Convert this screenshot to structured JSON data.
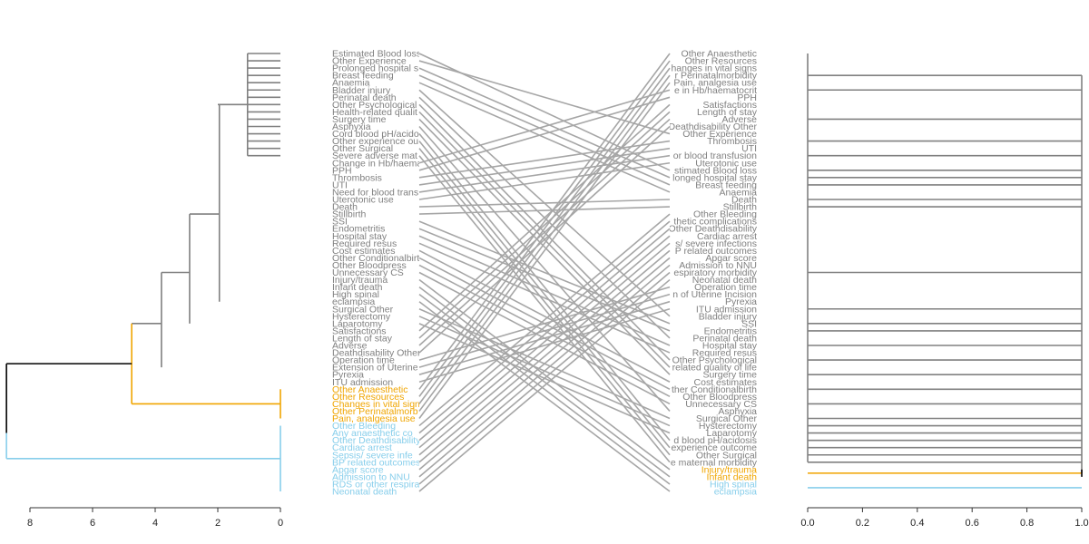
{
  "chart_data": {
    "type": "tanglegram",
    "colors": {
      "default": "#808080",
      "root": "#000000",
      "cluster_orange": "#f0a500",
      "cluster_blue": "#87ceeb",
      "connector": "#a6a6a6"
    },
    "left_labels": [
      "Estimated Blood loss",
      "Other Experience",
      "Prolonged hospital s",
      "Breast feeding",
      "Anaemia",
      "Bladder injury",
      "Perinatal death",
      "Other Psychological",
      "Health-related qualit",
      "Surgery time",
      "Asphyxia",
      "Cord blood pH/acido",
      "Other experience ou",
      "Other Surgical",
      "Severe adverse mat",
      "Change in Hb/haema",
      "PPH",
      "Thrombosis",
      "UTI",
      "Need for blood trans",
      "Uterotonic use",
      "Death",
      "Stillbirth",
      "SSI",
      "Endometritis",
      "Hospital stay",
      "Required resus",
      "Cost estimates",
      "Other Conditionalbirt",
      "Other Bloodpress",
      "Unnecessary CS",
      "Injury/trauma",
      "Infant death",
      "High spinal",
      "eclampsia",
      "Surgical Other",
      "Hysterectomy",
      "Laparotomy",
      "Satisfactions",
      "Length of stay",
      "Adverse",
      "Deathdisability Other",
      "Operation time",
      "Extension of Uterine",
      "Pyrexia",
      "ITU admission",
      "Other Anaesthetic",
      "Other Resources",
      "Changes in vital sign",
      "Other Perinatalmorb",
      "Pain, analgesia use",
      "Other Bleeding",
      "Any anaesthetic co",
      "Other Deathdisability",
      "Cardiac arrest",
      "Sepsis/ severe infe",
      "BP related outcomes",
      "Apgar score",
      "Admission to NNU",
      "RDS or other respira",
      "Neonatal death"
    ],
    "left_label_colors": {
      "orange": [
        "Other Anaesthetic",
        "Other Resources",
        "Changes in vital sign",
        "Other Perinatalmorb",
        "Pain, analgesia use"
      ],
      "blue": [
        "Other Bleeding",
        "Any anaesthetic co",
        "Other Deathdisability",
        "Cardiac arrest",
        "Sepsis/ severe infe",
        "BP related outcomes",
        "Apgar score",
        "Admission to NNU",
        "RDS or other respira",
        "Neonatal death"
      ]
    },
    "right_labels": [
      "Other Anaesthetic",
      "Other Resources",
      "hanges in vital signs",
      "r Perinatalmorbidity",
      "Pain, analgesia use",
      "e in Hb/haematocrit",
      "PPH",
      "Satisfactions",
      "Length of stay",
      "Adverse",
      "Deathdisability Other",
      "Other Experience",
      "Thrombosis",
      "UTI",
      "or blood transfusion",
      "Uterotonic use",
      "stimated Blood loss",
      "longed hospital stay",
      "Breast feeding",
      "Anaemia",
      "Death",
      "Stillbirth",
      "Other Bleeding",
      "thetic complications",
      "Other Deathdisability",
      "Cardiac arrest",
      "s/ severe infections",
      "P related outcomes",
      "Apgar score",
      "Admission to NNU",
      "espiratory morbidity",
      "Neonatal death",
      "Operation time",
      "n of Uterine Incision",
      "Pyrexia",
      "ITU admission",
      "Bladder injury",
      "SSI",
      "Endometritis",
      "Perinatal death",
      "Hospital stay",
      "Required resus",
      "Other Psychological",
      "related quality of life",
      "Surgery time",
      "Cost estimates",
      "ther Conditionalbirth",
      "Other Bloodpress",
      "Unnecessary CS",
      "Asphyxia",
      "Surgical Other",
      "Hysterectomy",
      "Laparotomy",
      "d blood pH/acidosis",
      "experience outcome",
      "Other Surgical",
      "e maternal morbidity",
      "Injury/trauma",
      "Infant death",
      "High spinal",
      "eclampsia"
    ],
    "right_label_colors": {
      "orange": [
        "Injury/trauma",
        "Infant death"
      ],
      "blue": [
        "High spinal",
        "eclampsia"
      ]
    },
    "connections": [
      [
        0,
        16
      ],
      [
        1,
        11
      ],
      [
        2,
        17
      ],
      [
        3,
        18
      ],
      [
        4,
        19
      ],
      [
        5,
        36
      ],
      [
        6,
        39
      ],
      [
        7,
        42
      ],
      [
        8,
        43
      ],
      [
        9,
        44
      ],
      [
        10,
        49
      ],
      [
        11,
        53
      ],
      [
        12,
        54
      ],
      [
        13,
        55
      ],
      [
        14,
        56
      ],
      [
        15,
        5
      ],
      [
        16,
        6
      ],
      [
        17,
        12
      ],
      [
        18,
        13
      ],
      [
        19,
        14
      ],
      [
        20,
        15
      ],
      [
        21,
        20
      ],
      [
        22,
        21
      ],
      [
        23,
        37
      ],
      [
        24,
        38
      ],
      [
        25,
        40
      ],
      [
        26,
        41
      ],
      [
        27,
        45
      ],
      [
        28,
        46
      ],
      [
        29,
        47
      ],
      [
        30,
        48
      ],
      [
        31,
        57
      ],
      [
        32,
        58
      ],
      [
        33,
        59
      ],
      [
        34,
        60
      ],
      [
        35,
        50
      ],
      [
        36,
        51
      ],
      [
        37,
        52
      ],
      [
        38,
        7
      ],
      [
        39,
        8
      ],
      [
        40,
        9
      ],
      [
        41,
        10
      ],
      [
        42,
        32
      ],
      [
        43,
        33
      ],
      [
        44,
        34
      ],
      [
        45,
        35
      ],
      [
        46,
        0
      ],
      [
        47,
        1
      ],
      [
        48,
        2
      ],
      [
        49,
        3
      ],
      [
        50,
        4
      ],
      [
        51,
        22
      ],
      [
        52,
        23
      ],
      [
        53,
        24
      ],
      [
        54,
        25
      ],
      [
        55,
        26
      ],
      [
        56,
        27
      ],
      [
        57,
        28
      ],
      [
        58,
        29
      ],
      [
        59,
        30
      ],
      [
        60,
        31
      ]
    ],
    "left_axis": {
      "ticks": [
        8,
        6,
        4,
        2,
        0
      ],
      "range": [
        8.75,
        0
      ],
      "reversed": true
    },
    "right_axis": {
      "ticks": [
        "0.0",
        "0.2",
        "0.4",
        "0.6",
        "0.8",
        "1.0"
      ],
      "range": [
        0,
        1
      ]
    }
  }
}
